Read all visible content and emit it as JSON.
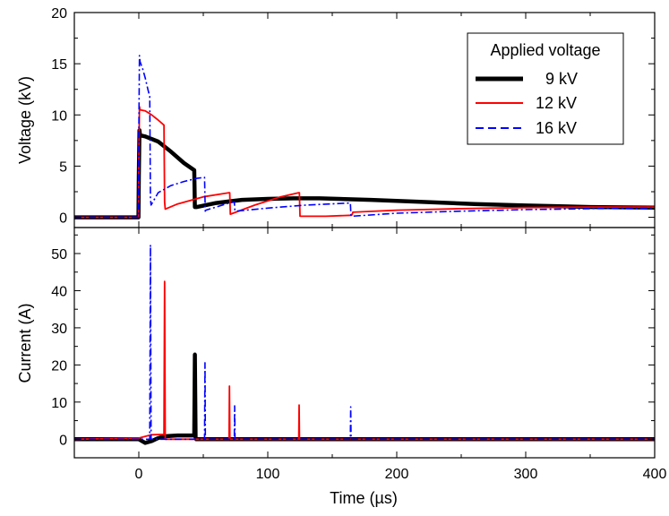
{
  "chart_data": [
    {
      "panel": "voltage",
      "type": "line",
      "ylabel": "Voltage (kV)",
      "xlim": [
        -50,
        400
      ],
      "ylim": [
        -1,
        20
      ],
      "yticks": [
        0,
        5,
        10,
        15,
        20
      ],
      "legend": {
        "title": "Applied voltage",
        "placement": "top-right"
      },
      "series": [
        {
          "name": "9 kV",
          "color": "#000000",
          "style": "solid-thick",
          "x": [
            -50,
            -0.3,
            0,
            0.5,
            1,
            5,
            15,
            25,
            35,
            43,
            43.5,
            45,
            60,
            80,
            100,
            120,
            140,
            180,
            220,
            260,
            300,
            350,
            400
          ],
          "y": [
            0,
            0,
            4,
            8.5,
            8.0,
            7.9,
            7.4,
            6.4,
            5.3,
            4.6,
            1.0,
            1.0,
            1.4,
            1.7,
            1.8,
            1.85,
            1.85,
            1.7,
            1.5,
            1.3,
            1.15,
            1.0,
            0.95
          ]
        },
        {
          "name": "12 kV",
          "color": "#ff0000",
          "style": "solid",
          "x": [
            -50,
            -0.3,
            0,
            0.5,
            1,
            5,
            10,
            15,
            19.5,
            20,
            20.5,
            30,
            50,
            70,
            70.5,
            71,
            90,
            110,
            124,
            124.5,
            125,
            145,
            165,
            165.5,
            166,
            200,
            250,
            300,
            350,
            400
          ],
          "y": [
            0,
            0,
            5,
            10.8,
            10.5,
            10.4,
            10.0,
            9.5,
            9.0,
            1.5,
            0.8,
            1.3,
            2.0,
            2.4,
            2.4,
            0.3,
            1.2,
            2.0,
            2.4,
            2.4,
            0.1,
            0.1,
            0.2,
            0.3,
            0.5,
            0.7,
            0.85,
            0.95,
            1.0,
            1.0
          ]
        },
        {
          "name": "16 kV",
          "color": "#0000ff",
          "style": "dash-dot",
          "x": [
            -50,
            -0.3,
            0,
            0.5,
            1,
            3,
            5,
            7,
            8.5,
            9,
            9.5,
            15,
            25,
            35,
            45,
            51,
            51.5,
            52,
            60,
            70,
            74,
            74.5,
            75,
            100,
            130,
            164,
            164.5,
            165,
            200,
            250,
            300,
            350,
            400
          ],
          "y": [
            0,
            0,
            8,
            15.8,
            15.2,
            14.5,
            13.6,
            12.5,
            11.8,
            1.8,
            1.2,
            2.4,
            3.1,
            3.5,
            3.8,
            3.9,
            0.6,
            0.7,
            1.0,
            1.4,
            1.5,
            0.7,
            0.6,
            0.9,
            1.2,
            1.4,
            0.2,
            0.1,
            0.4,
            0.6,
            0.75,
            0.85,
            0.9
          ]
        }
      ]
    },
    {
      "panel": "current",
      "type": "line",
      "xlabel": "Time (µs)",
      "ylabel": "Current (A)",
      "xlim": [
        -50,
        400
      ],
      "ylim": [
        -5,
        57
      ],
      "xticks": [
        0,
        100,
        200,
        300,
        400
      ],
      "yticks": [
        0,
        10,
        20,
        30,
        40,
        50
      ],
      "series": [
        {
          "name": "9 kV",
          "color": "#000000",
          "style": "solid-thick",
          "x": [
            -50,
            0,
            5,
            10,
            15,
            20,
            30,
            40,
            43,
            43.5,
            44,
            44.5,
            45,
            60,
            100,
            200,
            300,
            400
          ],
          "y": [
            0,
            0,
            -1,
            -0.5,
            0.3,
            0.8,
            1.0,
            1.0,
            1.0,
            22.8,
            0.5,
            0,
            0,
            0,
            0,
            0,
            0,
            0
          ]
        },
        {
          "name": "12 kV",
          "color": "#ff0000",
          "style": "solid",
          "x": [
            -50,
            0,
            10,
            19.5,
            20,
            20.5,
            40,
            70,
            70.3,
            70.6,
            100,
            124,
            124.3,
            124.6,
            200,
            300,
            400
          ],
          "y": [
            0,
            0.3,
            1.2,
            1.3,
            42.5,
            0,
            0,
            0,
            14.3,
            0,
            0,
            0,
            9.2,
            0,
            0,
            0,
            0
          ]
        },
        {
          "name": "16 kV",
          "color": "#0000ff",
          "style": "dash-dot",
          "x": [
            -50,
            0,
            8.5,
            9,
            9.5,
            51,
            51.3,
            51.6,
            74,
            74.3,
            74.6,
            164,
            164.3,
            164.6,
            250,
            400
          ],
          "y": [
            0,
            0,
            0,
            52.3,
            0,
            0,
            20.6,
            0,
            0,
            9.0,
            0,
            0,
            8.7,
            0,
            0,
            0
          ]
        }
      ]
    }
  ]
}
